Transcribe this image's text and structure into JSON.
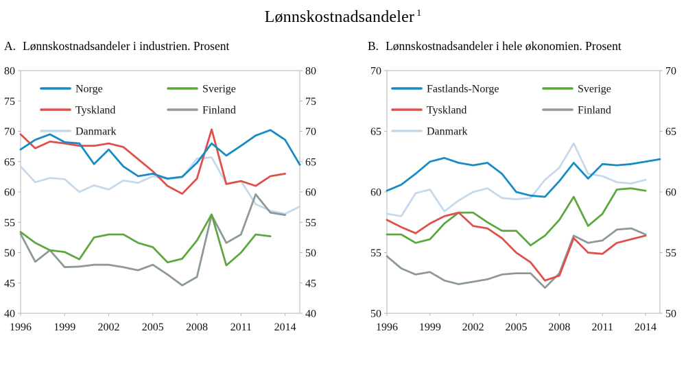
{
  "title": {
    "text": "Lønnskostnadsandeler",
    "superscript": "1"
  },
  "chart_data": [
    {
      "type": "line",
      "panel_label": "A.",
      "title": "Lønnskostnadsandeler i industrien. Prosent",
      "x": [
        1996,
        1997,
        1998,
        1999,
        2000,
        2001,
        2002,
        2003,
        2004,
        2005,
        2006,
        2007,
        2008,
        2009,
        2010,
        2011,
        2012,
        2013,
        2014,
        2015
      ],
      "xticks": [
        1996,
        1999,
        2002,
        2005,
        2008,
        2011,
        2014
      ],
      "ylim": [
        40,
        80
      ],
      "yticks": [
        40,
        45,
        50,
        55,
        60,
        65,
        70,
        75,
        80
      ],
      "grid": false,
      "axis_labels_both_sides": true,
      "legend_position": "inside top-left, two columns",
      "draw_order": [
        2,
        4,
        3,
        1,
        0
      ],
      "series": [
        {
          "name": "Norge",
          "color": "#168bc4",
          "values": [
            67.0,
            68.6,
            69.5,
            68.2,
            68.0,
            64.6,
            67.0,
            64.2,
            62.6,
            63.0,
            62.2,
            62.5,
            64.8,
            68.0,
            66.0,
            67.6,
            69.3,
            70.2,
            68.6,
            64.5
          ]
        },
        {
          "name": "Tyskland",
          "color": "#e0504a",
          "values": [
            69.5,
            67.2,
            68.3,
            68.0,
            67.6,
            67.6,
            68.0,
            67.4,
            65.4,
            63.4,
            61.0,
            59.7,
            62.2,
            70.3,
            61.3,
            61.8,
            61.0,
            62.6,
            63.0,
            null
          ]
        },
        {
          "name": "Danmark",
          "color": "#c6d9ec",
          "values": [
            64.2,
            61.6,
            62.3,
            62.1,
            60.0,
            61.1,
            60.4,
            61.9,
            61.5,
            62.6,
            62.1,
            62.4,
            65.5,
            65.7,
            61.4,
            61.8,
            58.0,
            56.9,
            56.4,
            57.6
          ]
        },
        {
          "name": "Sverige",
          "color": "#5ca83e",
          "values": [
            53.4,
            51.6,
            50.4,
            50.1,
            48.9,
            52.5,
            53.0,
            53.0,
            51.6,
            50.9,
            48.4,
            49.0,
            52.0,
            56.3,
            47.9,
            50.0,
            53.0,
            52.7,
            null,
            null
          ]
        },
        {
          "name": "Finland",
          "color": "#8d9998",
          "values": [
            53.1,
            48.5,
            50.4,
            47.6,
            47.7,
            48.0,
            48.0,
            47.6,
            47.1,
            48.0,
            46.4,
            44.6,
            46.0,
            56.2,
            51.6,
            53.0,
            59.6,
            56.6,
            56.2,
            null
          ]
        }
      ]
    },
    {
      "type": "line",
      "panel_label": "B.",
      "title": "Lønnskostnadsandeler i  hele økonomien. Prosent",
      "x": [
        1996,
        1997,
        1998,
        1999,
        2000,
        2001,
        2002,
        2003,
        2004,
        2005,
        2006,
        2007,
        2008,
        2009,
        2010,
        2011,
        2012,
        2013,
        2014,
        2015
      ],
      "xticks": [
        1996,
        1999,
        2002,
        2005,
        2008,
        2011,
        2014
      ],
      "ylim": [
        50,
        70
      ],
      "yticks": [
        50,
        55,
        60,
        65,
        70
      ],
      "grid": false,
      "axis_labels_both_sides": true,
      "legend_position": "inside top-left, two columns",
      "draw_order": [
        2,
        4,
        3,
        1,
        0
      ],
      "series": [
        {
          "name": "Fastlands-Norge",
          "color": "#168bc4",
          "values": [
            60.1,
            60.6,
            61.5,
            62.5,
            62.8,
            62.4,
            62.2,
            62.4,
            61.5,
            60.0,
            59.7,
            59.6,
            60.9,
            62.4,
            61.1,
            62.3,
            62.2,
            62.3,
            62.5,
            62.7
          ]
        },
        {
          "name": "Tyskland",
          "color": "#e0504a",
          "values": [
            57.7,
            57.1,
            56.6,
            57.4,
            58.0,
            58.3,
            57.2,
            57.0,
            56.2,
            55.0,
            54.2,
            52.7,
            53.1,
            56.2,
            55.0,
            54.9,
            55.8,
            56.1,
            56.4,
            null
          ]
        },
        {
          "name": "Danmark",
          "color": "#c6d9ec",
          "values": [
            58.2,
            58.0,
            59.9,
            60.2,
            58.4,
            59.3,
            60.0,
            60.3,
            59.5,
            59.4,
            59.5,
            61.0,
            62.0,
            64.0,
            61.5,
            61.3,
            60.8,
            60.7,
            61.0,
            null
          ]
        },
        {
          "name": "Sverige",
          "color": "#5ca83e",
          "values": [
            56.5,
            56.5,
            55.8,
            56.1,
            57.4,
            58.3,
            58.3,
            57.5,
            56.8,
            56.8,
            55.6,
            56.4,
            57.7,
            59.6,
            57.2,
            58.2,
            60.2,
            60.3,
            60.1,
            null
          ]
        },
        {
          "name": "Finland",
          "color": "#8d9998",
          "values": [
            54.7,
            53.7,
            53.2,
            53.4,
            52.7,
            52.4,
            52.6,
            52.8,
            53.2,
            53.3,
            53.3,
            52.1,
            53.3,
            56.4,
            55.8,
            56.0,
            56.9,
            57.0,
            56.5,
            null
          ]
        }
      ]
    }
  ]
}
